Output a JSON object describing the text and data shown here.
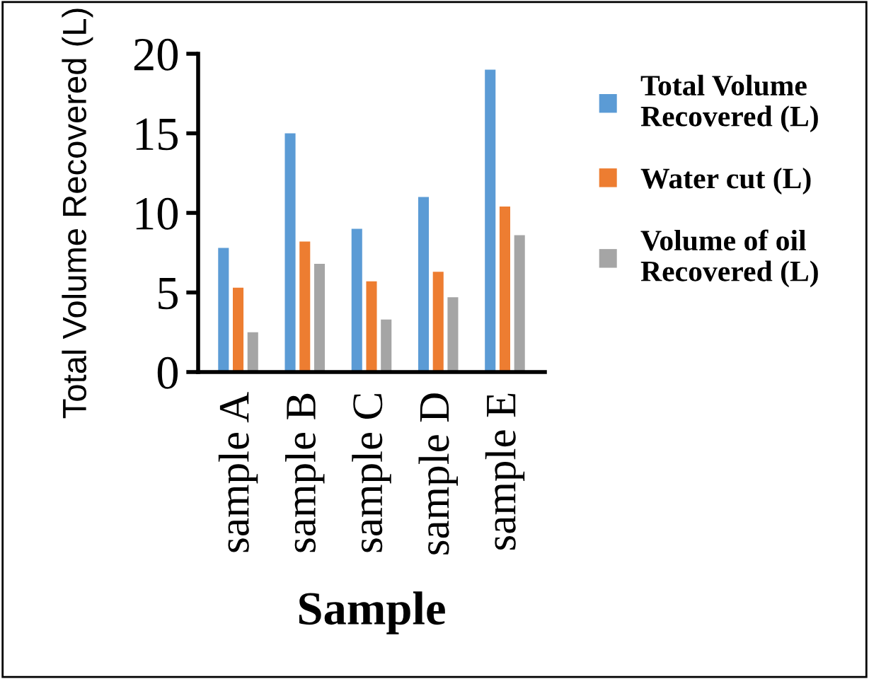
{
  "chart_data": {
    "type": "bar",
    "xlabel": "Sample",
    "ylabel": "Total Volume Recovered (L)",
    "categories": [
      "sample A",
      "sample B",
      "sample C",
      "sample D",
      "sample E"
    ],
    "series": [
      {
        "name": "Total Volume Recovered (L)",
        "color": "#5b9bd5",
        "values": [
          7.8,
          15,
          9,
          11,
          19
        ]
      },
      {
        "name": "Water cut (L)",
        "color": "#ed7d31",
        "values": [
          5.3,
          8.2,
          5.7,
          6.3,
          10.4
        ]
      },
      {
        "name": "Volume of oil Recovered (L)",
        "color": "#a5a5a5",
        "values": [
          2.5,
          6.8,
          3.3,
          4.7,
          8.6
        ]
      }
    ],
    "ylim": [
      0,
      20
    ],
    "yticks": [
      0,
      5,
      10,
      15,
      20
    ],
    "grid": false,
    "legend": "right"
  }
}
